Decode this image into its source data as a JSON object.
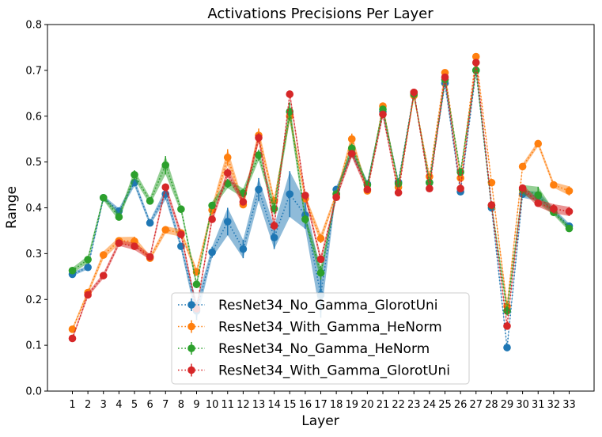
{
  "chart_data": {
    "type": "line",
    "title": "Activations Precisions Per Layer",
    "xlabel": "Layer",
    "ylabel": "Range",
    "ylim": [
      0,
      0.8
    ],
    "yticks": [
      "0.0",
      "0.1",
      "0.2",
      "0.3",
      "0.4",
      "0.5",
      "0.6",
      "0.7",
      "0.8"
    ],
    "categories": [
      "1",
      "2",
      "3",
      "4",
      "5",
      "6",
      "7",
      "8",
      "9",
      "10",
      "11",
      "12",
      "13",
      "14",
      "15",
      "16",
      "17",
      "18",
      "19",
      "20",
      "21",
      "22",
      "23",
      "24",
      "25",
      "26",
      "27",
      "28",
      "29",
      "30",
      "31",
      "32",
      "33"
    ],
    "legend_position": "lower-center",
    "series": [
      {
        "name": "ResNet34_No_Gamma_GlorotUni",
        "color": "#1f77b4",
        "values": [
          0.255,
          0.27,
          0.422,
          0.393,
          0.455,
          0.367,
          0.43,
          0.316,
          0.175,
          0.303,
          0.37,
          0.31,
          0.44,
          0.335,
          0.43,
          0.384,
          0.21,
          0.44,
          0.52,
          0.452,
          0.61,
          0.456,
          0.65,
          0.455,
          0.672,
          0.435,
          0.7,
          0.4,
          0.095,
          0.43,
          0.425,
          0.393,
          0.36
        ],
        "errors": [
          0.004,
          0.004,
          0.005,
          0.006,
          0.008,
          0.006,
          0.012,
          0.008,
          0.02,
          0.012,
          0.03,
          0.02,
          0.025,
          0.025,
          0.05,
          0.03,
          0.05,
          0.006,
          0.008,
          0.006,
          0.008,
          0.006,
          0.005,
          0.006,
          0.008,
          0.005,
          0.006,
          0.006,
          0.005,
          0.008,
          0.01,
          0.006,
          0.006
        ]
      },
      {
        "name": "ResNet34_With_Gamma_HeNorm",
        "color": "#ff7f0e",
        "values": [
          0.135,
          0.215,
          0.297,
          0.328,
          0.327,
          0.29,
          0.352,
          0.345,
          0.26,
          0.395,
          0.51,
          0.407,
          0.558,
          0.415,
          0.6,
          0.42,
          0.333,
          0.43,
          0.55,
          0.437,
          0.622,
          0.445,
          0.645,
          0.468,
          0.695,
          0.465,
          0.73,
          0.455,
          0.185,
          0.49,
          0.54,
          0.45,
          0.437
        ],
        "errors": [
          0.004,
          0.006,
          0.008,
          0.008,
          0.01,
          0.006,
          0.008,
          0.008,
          0.008,
          0.01,
          0.018,
          0.008,
          0.015,
          0.008,
          0.01,
          0.008,
          0.01,
          0.005,
          0.012,
          0.005,
          0.006,
          0.005,
          0.006,
          0.006,
          0.006,
          0.006,
          0.005,
          0.005,
          0.01,
          0.006,
          0.006,
          0.006,
          0.01
        ]
      },
      {
        "name": "ResNet34_No_Gamma_HeNorm",
        "color": "#2ca02c",
        "values": [
          0.263,
          0.287,
          0.422,
          0.38,
          0.472,
          0.415,
          0.493,
          0.397,
          0.233,
          0.405,
          0.453,
          0.432,
          0.515,
          0.398,
          0.61,
          0.375,
          0.258,
          0.43,
          0.53,
          0.45,
          0.615,
          0.453,
          0.648,
          0.455,
          0.68,
          0.478,
          0.7,
          0.405,
          0.175,
          0.44,
          0.428,
          0.39,
          0.355
        ],
        "errors": [
          0.006,
          0.008,
          0.006,
          0.008,
          0.01,
          0.008,
          0.02,
          0.008,
          0.008,
          0.008,
          0.01,
          0.01,
          0.012,
          0.012,
          0.02,
          0.01,
          0.015,
          0.006,
          0.01,
          0.006,
          0.008,
          0.006,
          0.005,
          0.006,
          0.006,
          0.006,
          0.006,
          0.006,
          0.01,
          0.01,
          0.018,
          0.006,
          0.006
        ]
      },
      {
        "name": "ResNet34_With_Gamma_GlorotUni",
        "color": "#d62728",
        "values": [
          0.115,
          0.21,
          0.252,
          0.323,
          0.316,
          0.293,
          0.445,
          0.342,
          0.18,
          0.375,
          0.476,
          0.413,
          0.553,
          0.361,
          0.648,
          0.427,
          0.288,
          0.423,
          0.518,
          0.44,
          0.604,
          0.433,
          0.652,
          0.442,
          0.685,
          0.442,
          0.717,
          0.406,
          0.142,
          0.443,
          0.41,
          0.398,
          0.392
        ],
        "errors": [
          0.004,
          0.005,
          0.006,
          0.006,
          0.008,
          0.006,
          0.008,
          0.008,
          0.006,
          0.008,
          0.01,
          0.008,
          0.01,
          0.01,
          0.008,
          0.008,
          0.008,
          0.006,
          0.008,
          0.006,
          0.006,
          0.006,
          0.005,
          0.006,
          0.006,
          0.006,
          0.006,
          0.006,
          0.006,
          0.008,
          0.008,
          0.01,
          0.01
        ]
      }
    ]
  }
}
